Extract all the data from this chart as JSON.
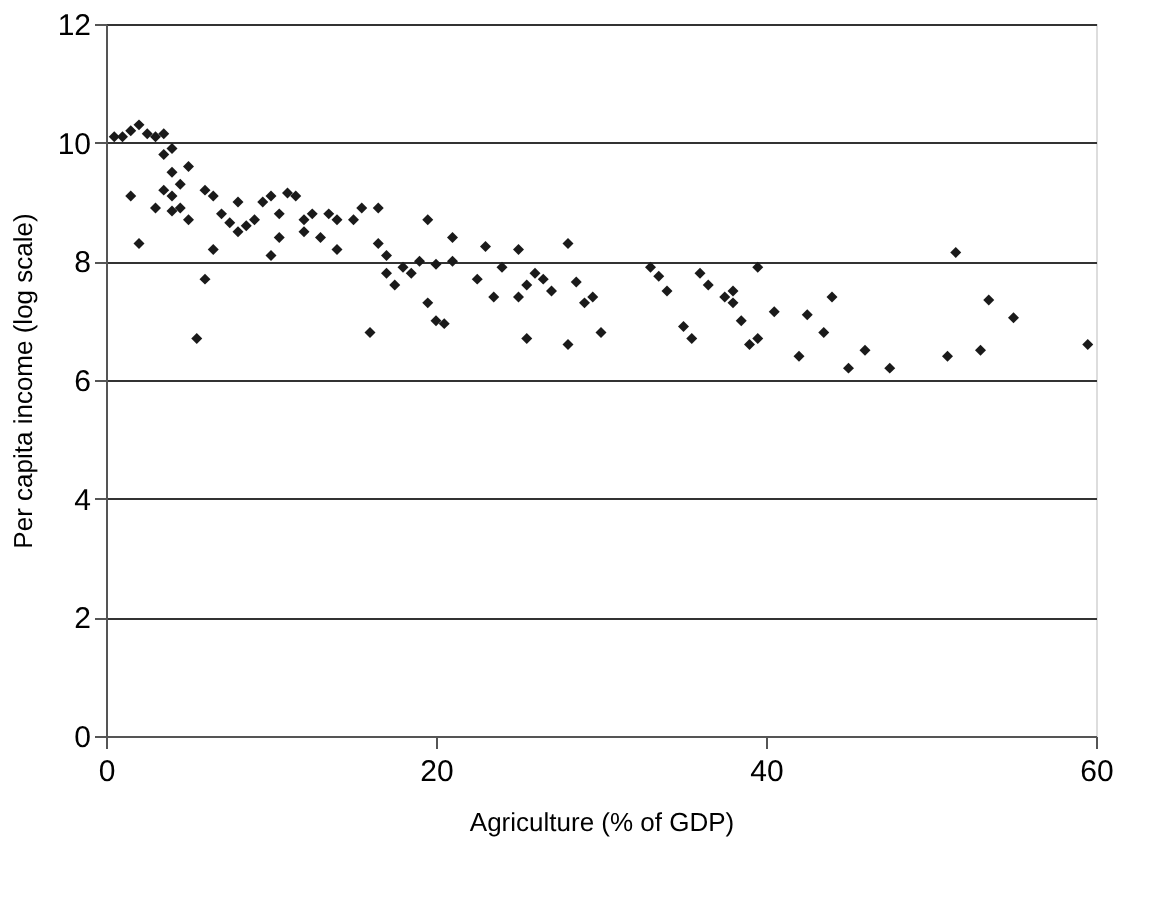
{
  "chart_data": {
    "type": "scatter",
    "xlabel": "Agriculture (% of GDP)",
    "ylabel": "Per capita income (log scale)",
    "xlim": [
      0,
      60
    ],
    "xticks": [
      0,
      20,
      40,
      60
    ],
    "ylim": [
      0,
      12
    ],
    "yticks": [
      0,
      2,
      4,
      6,
      8,
      10,
      12
    ],
    "grid": "y",
    "marker": "diamond",
    "series": [
      {
        "color": "#1a1a1a",
        "x": [
          0.5,
          1,
          1.5,
          2,
          2.5,
          3,
          3.5,
          3.5,
          4,
          4,
          3.5,
          4,
          4.5,
          4.5,
          5,
          3,
          4,
          1.5,
          2,
          5,
          5.5,
          6,
          6,
          6.5,
          6.5,
          7,
          7.5,
          8,
          8,
          8.5,
          9,
          9.5,
          10,
          10,
          10.5,
          10.5,
          11,
          11.5,
          12,
          12,
          12.5,
          13,
          13.5,
          14,
          14,
          15,
          15.5,
          16,
          16.5,
          16.5,
          17,
          17,
          17.5,
          18,
          18.5,
          19,
          19.5,
          19.5,
          20,
          20,
          20.5,
          21,
          21,
          22.5,
          23,
          23.5,
          24,
          25,
          25,
          25.5,
          25.5,
          26,
          26.5,
          27,
          28,
          28,
          28.5,
          29,
          29.5,
          30,
          33,
          33.5,
          34,
          35,
          35.5,
          36,
          36.5,
          37.5,
          38,
          38,
          38.5,
          39,
          39.5,
          39.5,
          40.5,
          42,
          42.5,
          43.5,
          44,
          45,
          46,
          47.5,
          51,
          51.5,
          53,
          53.5,
          55,
          59.5
        ],
        "values": [
          10.1,
          10.1,
          10.2,
          10.3,
          10.15,
          10.1,
          10.15,
          9.8,
          9.9,
          9.5,
          9.2,
          9.1,
          9.3,
          8.9,
          9.6,
          8.9,
          8.85,
          9.1,
          8.3,
          8.7,
          6.7,
          7.7,
          9.2,
          8.2,
          9.1,
          8.8,
          8.65,
          8.5,
          9.0,
          8.6,
          8.7,
          9.0,
          9.1,
          8.1,
          8.4,
          8.8,
          9.15,
          9.1,
          8.7,
          8.5,
          8.8,
          8.4,
          8.8,
          8.2,
          8.7,
          8.7,
          8.9,
          6.8,
          8.9,
          8.3,
          8.1,
          7.8,
          7.6,
          7.9,
          7.8,
          8.0,
          8.7,
          7.3,
          7.0,
          7.95,
          6.95,
          8.0,
          8.4,
          7.7,
          8.25,
          7.4,
          7.9,
          7.4,
          8.2,
          7.6,
          6.7,
          7.8,
          7.7,
          7.5,
          8.3,
          6.6,
          7.65,
          7.3,
          7.4,
          6.8,
          7.9,
          7.75,
          7.5,
          6.9,
          6.7,
          7.8,
          7.6,
          7.4,
          7.3,
          7.5,
          7.0,
          6.6,
          7.9,
          6.7,
          7.15,
          6.4,
          7.1,
          6.8,
          7.4,
          6.2,
          6.5,
          6.2,
          6.4,
          8.15,
          6.5,
          7.35,
          7.05,
          6.6
        ]
      }
    ]
  }
}
